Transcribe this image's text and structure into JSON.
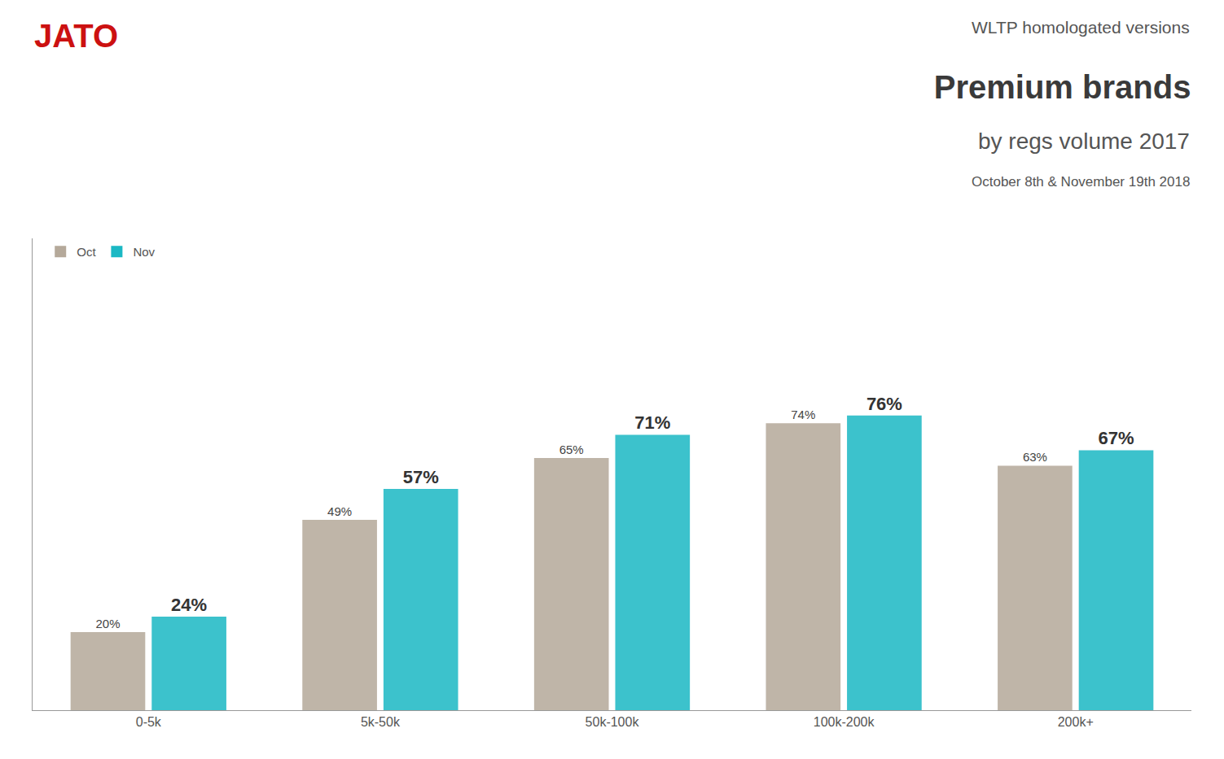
{
  "chart_data": {
    "type": "bar",
    "title": "Premium brands",
    "subtitle": "WLTP homologated versions",
    "annotations": [
      "JATO",
      "by regs volume 2017",
      "October 8th & November 19th 2018"
    ],
    "categories": [
      "0-5k",
      "5k-50k",
      "50k-100k",
      "100k-200k",
      "200k+"
    ],
    "series": [
      {
        "name": "Oct",
        "color": "#b5a99a",
        "values": [
          20,
          49,
          65,
          74,
          63
        ],
        "value_labels": [
          "20%",
          "49%",
          "65%",
          "74%",
          "63%"
        ]
      },
      {
        "name": "Nov",
        "color": "#1bb8c4",
        "values": [
          24,
          57,
          71,
          76,
          67
        ],
        "value_labels": [
          "24%",
          "57%",
          "71%",
          "76%",
          "67%"
        ]
      }
    ],
    "ylim": [
      0,
      122
    ],
    "data_labels": true,
    "tick_labels": "x",
    "grid": false,
    "legend": "upper left"
  }
}
